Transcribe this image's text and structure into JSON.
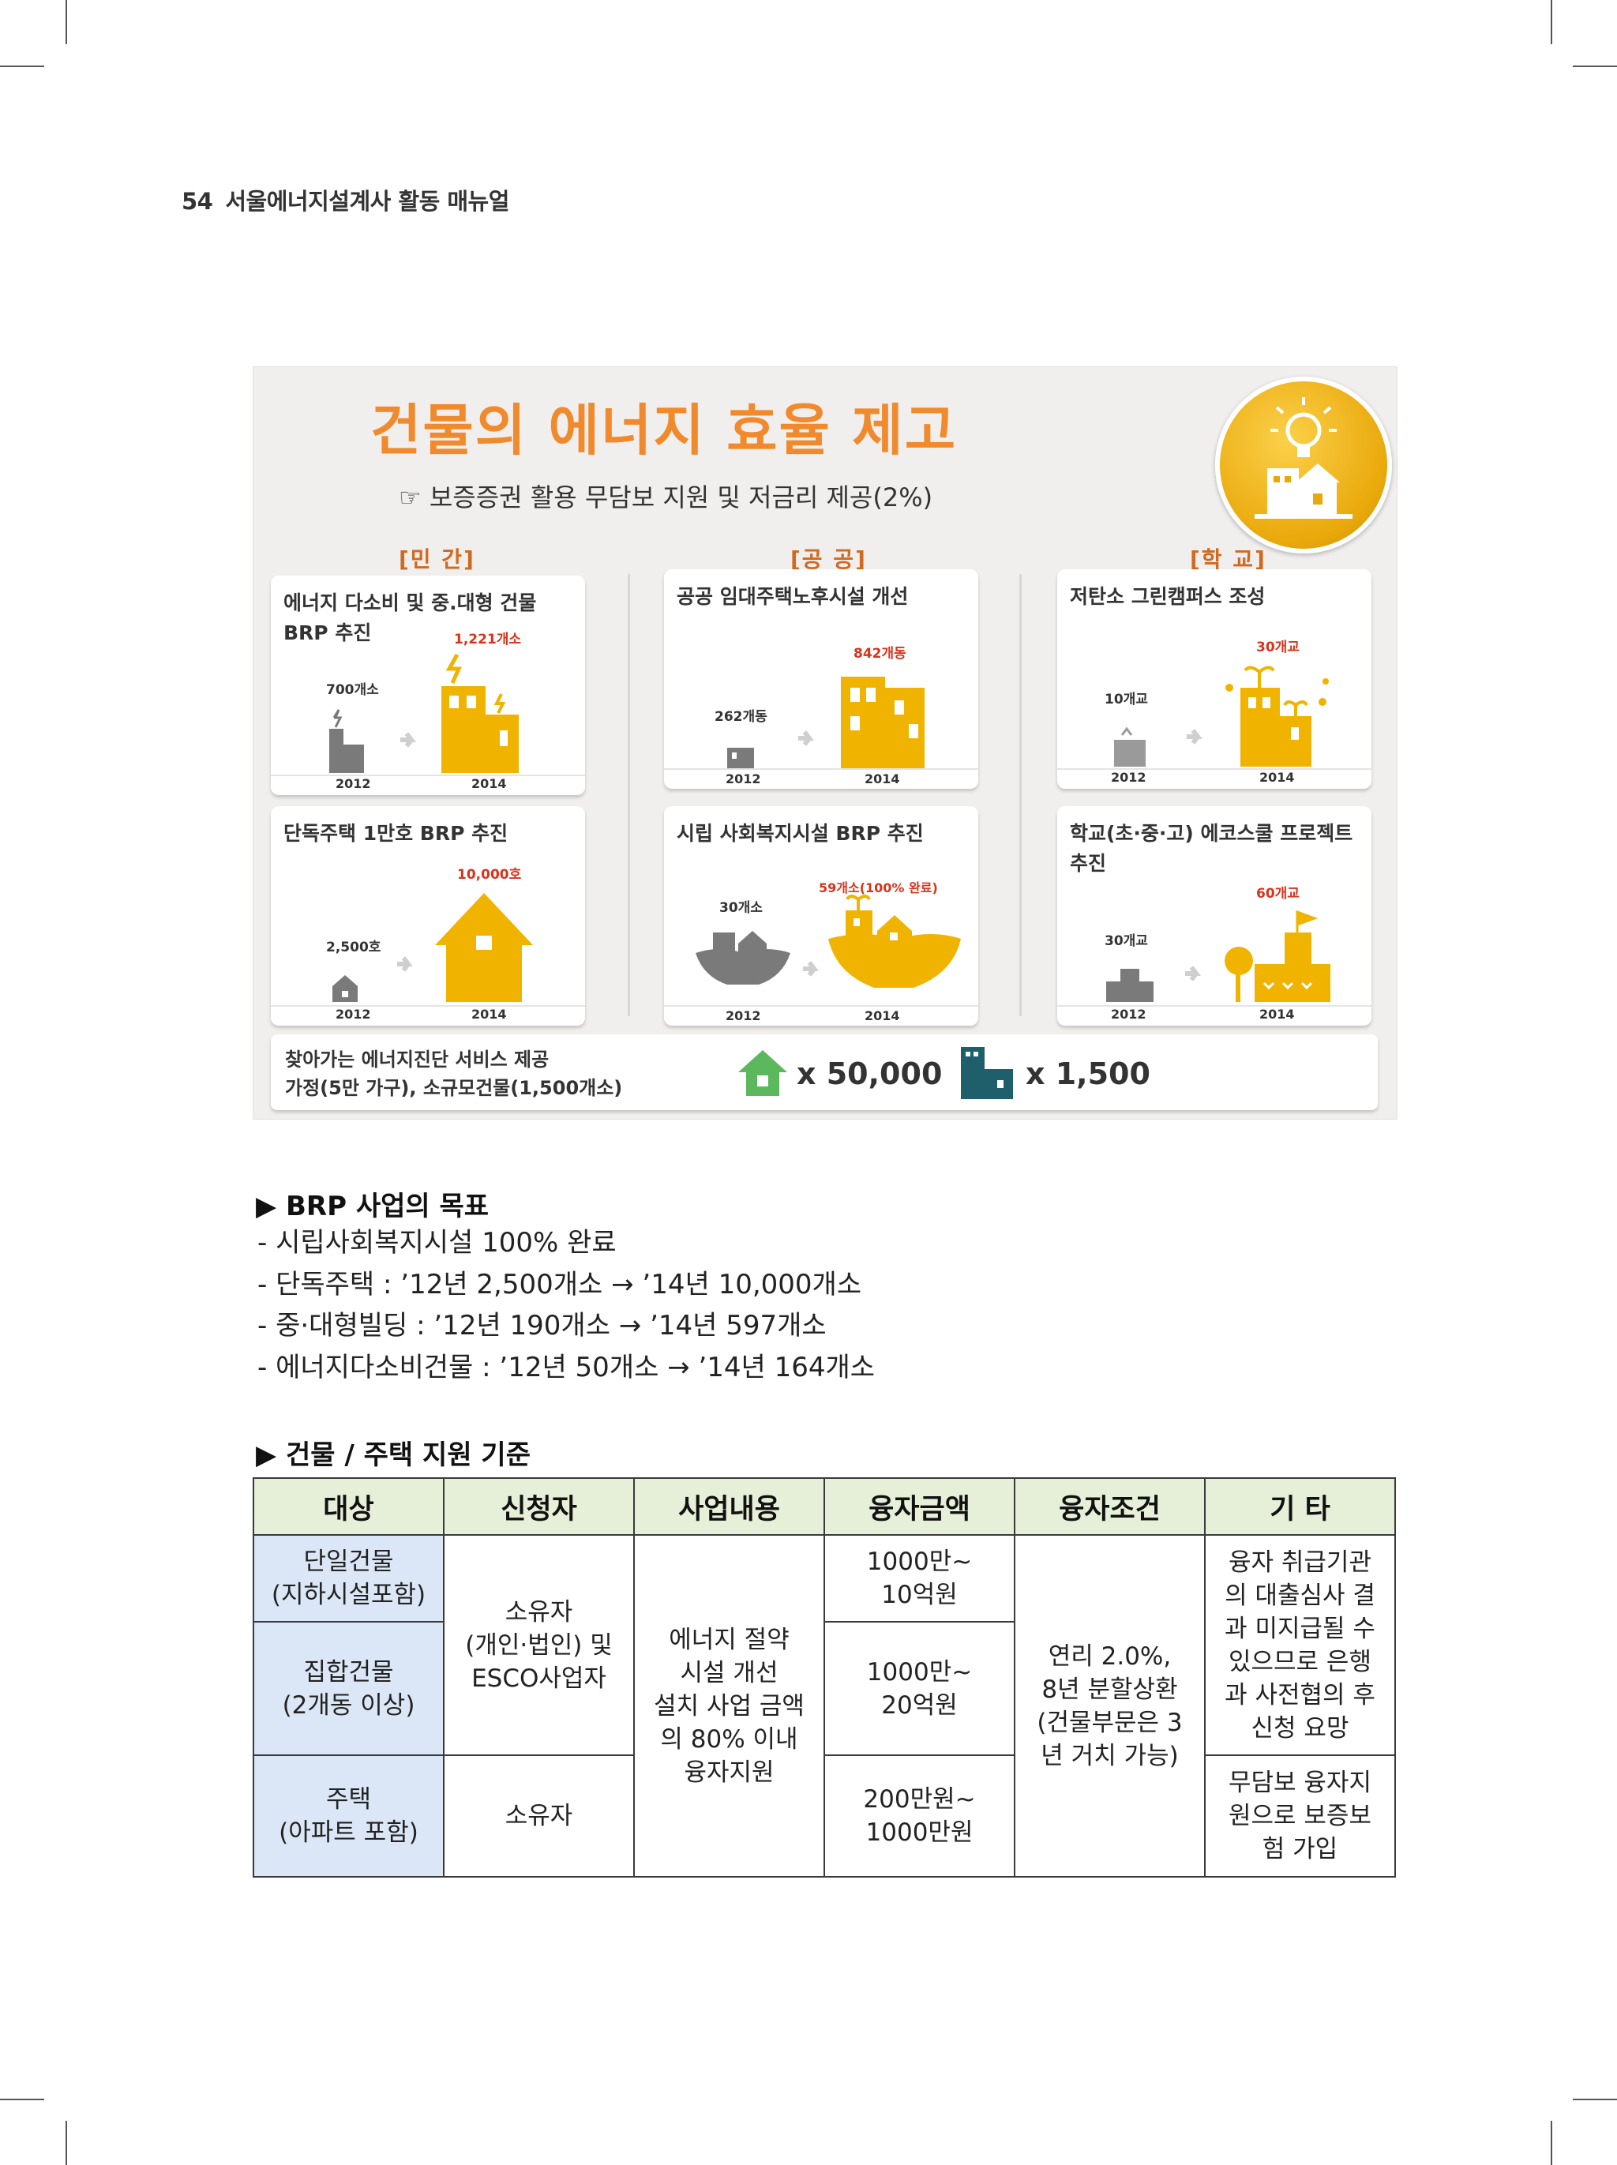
{
  "header": {
    "page_number": "54",
    "title": "서울에너지설계사 활동 매뉴얼"
  },
  "infographic": {
    "title": "건물의 에너지 효율 제고",
    "subtitle": "☞ 보증증권 활용 무담보 지원 및 저금리 제공(2%)",
    "sections": [
      "[민  간]",
      "[공  공]",
      "[학  교]"
    ],
    "cards": [
      {
        "title": "에너지 다소비 및 중.대형 건물 BRP 추진",
        "before_label": "700개소",
        "after_label": "1,221개소",
        "year_before": "2012",
        "year_after": "2014"
      },
      {
        "title": "공공 임대주택노후시설 개선",
        "before_label": "262개동",
        "after_label": "842개동",
        "year_before": "2012",
        "year_after": "2014"
      },
      {
        "title": "저탄소 그린캠퍼스 조성",
        "before_label": "10개교",
        "after_label": "30개교",
        "year_before": "2012",
        "year_after": "2014"
      },
      {
        "title": "단독주택 1만호 BRP 추진",
        "before_label": "2,500호",
        "after_label": "10,000호",
        "year_before": "2012",
        "year_after": "2014"
      },
      {
        "title": "시립 사회복지시설 BRP 추진",
        "before_label": "30개소",
        "after_label": "59개소(100% 완료)",
        "year_before": "2012",
        "year_after": "2014"
      },
      {
        "title": "학교(초·중·고) 에코스쿨 프로젝트 추진",
        "before_label": "30개교",
        "after_label": "60개교",
        "year_before": "2012",
        "year_after": "2014"
      }
    ],
    "bottom": {
      "line1": "찾아가는 에너지진단 서비스 제공",
      "line2": "가정(5만 가구), 소규모건물(1,500개소)",
      "stat_home": "x 50,000",
      "stat_building": "x 1,500"
    },
    "colors": {
      "accent": "#f08a2c",
      "icon_yellow": "#f0b400",
      "icon_gray": "#7a7a7a",
      "home_green": "#5cb85c",
      "building_teal": "#1f5f6b"
    }
  },
  "goals": {
    "heading": "▶ BRP 사업의 목표",
    "items": [
      "- 시립사회복지시설 100% 완료",
      "- 단독주택 : ’12년 2,500개소 → ’14년 10,000개소",
      "- 중·대형빌딩 : ’12년 190개소  → ’14년 597개소",
      "- 에너지다소비건물 : ’12년 50개소  → ’14년 164개소"
    ]
  },
  "support": {
    "heading": "▶ 건물 / 주택 지원 기준",
    "headers": [
      "대상",
      "신청자",
      "사업내용",
      "융자금액",
      "융자조건",
      "기 타"
    ],
    "rows": {
      "r1_target": "단일건물\n(지하시설포함)",
      "r2_target": "집합건물\n(2개동  이상)",
      "r3_target": "주택\n(아파트 포함)",
      "applicant_12": "소유자\n(개인·법인) 및\nESCO사업자",
      "applicant_3": "소유자",
      "content": "에너지 절약\n시설 개선\n설치 사업 금액\n의 80% 이내\n융자지원",
      "amount_1": "1000만~\n10억원",
      "amount_2": "1000만~\n20억원",
      "amount_3": "200만원~\n1000만원",
      "condition": "연리 2.0%,\n8년 분할상환\n(건물부문은 3\n년 거치 가능)",
      "etc_12": "융자 취급기관\n의 대출심사 결\n과 미지급될 수\n있으므로 은행\n과 사전협의 후\n신청 요망",
      "etc_3": "무담보 융자지\n원으로 보증보\n험 가입"
    }
  }
}
